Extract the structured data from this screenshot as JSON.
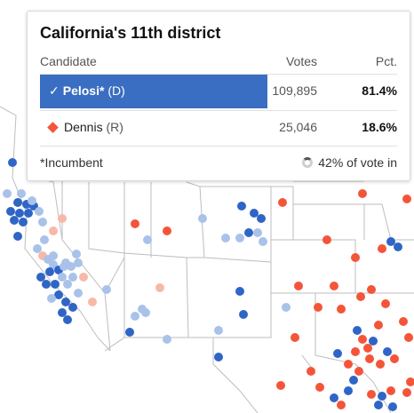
{
  "title": "California's 11th district",
  "headers": {
    "candidate": "Candidate",
    "votes": "Votes",
    "pct": "Pct."
  },
  "candidates": [
    {
      "name": "Pelosi*",
      "party": "(D)",
      "votes": "109,895",
      "pct": "81.4%",
      "winner": true,
      "color": "#3a6ec2"
    },
    {
      "name": "Dennis",
      "party": "(R)",
      "votes": "25,046",
      "pct": "18.6%",
      "winner": false,
      "color": "#f4553a"
    }
  ],
  "footer": {
    "note": "*Incumbent",
    "reporting": "42% of vote in"
  },
  "colors": {
    "dem": "#2f65c6",
    "rep": "#f4553a",
    "dem_light": "#a9c2ea",
    "rep_light": "#f8b8a8"
  }
}
